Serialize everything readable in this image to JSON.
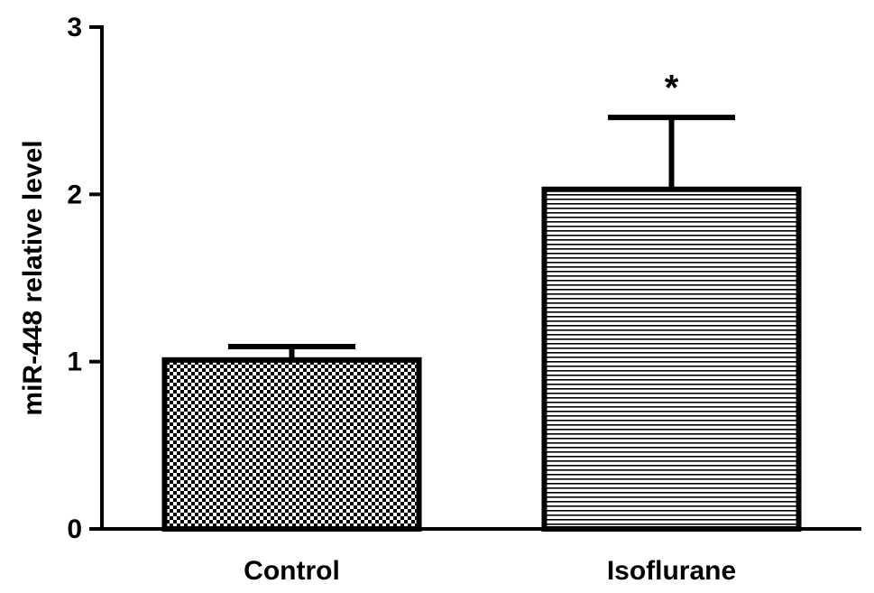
{
  "chart_data": {
    "type": "bar",
    "y_label": "miR-448 relative level",
    "categories": [
      "Control",
      "Isoflurane"
    ],
    "values": [
      1.01,
      2.03
    ],
    "errors": [
      0.08,
      0.43
    ],
    "patterns": [
      "checker",
      "hlines"
    ],
    "color": "#000000",
    "ylim": [
      0,
      3
    ],
    "yticks": [
      0,
      1,
      2,
      3
    ],
    "annotations": [
      {
        "text": "*",
        "category": "Isoflurane"
      }
    ]
  }
}
